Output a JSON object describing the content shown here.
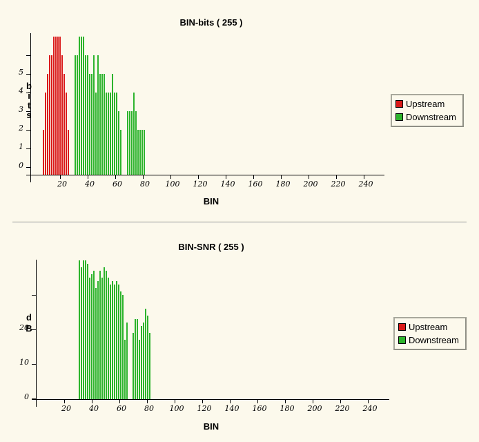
{
  "page": {
    "background": "#FCF9EC"
  },
  "legend": {
    "items": [
      {
        "label": "Upstream",
        "color": "#DA1A1A"
      },
      {
        "label": "Downstream",
        "color": "#2DB42D"
      }
    ]
  },
  "chart_data": [
    {
      "type": "bar",
      "title": "BIN-bits ( 255 )",
      "xlabel": "BIN",
      "ylabel": "bits",
      "xlim": [
        0,
        255
      ],
      "ylim": [
        0,
        7
      ],
      "grid": false,
      "legend_position": "right",
      "x_ticks": [
        20,
        40,
        60,
        80,
        100,
        120,
        140,
        160,
        180,
        200,
        220,
        240
      ],
      "y_ticks": [
        {
          "v": 0,
          "label": "0"
        },
        {
          "v": 1,
          "label": "1"
        },
        {
          "v": 2,
          "label": "2"
        },
        {
          "v": 3,
          "label": "3"
        },
        {
          "v": 4,
          "label": "4"
        },
        {
          "v": 5,
          "label": "5"
        },
        {
          "v": 6,
          "label": ""
        }
      ],
      "series": [
        {
          "name": "Upstream",
          "color": "#DA1A1A",
          "bins": [
            7.7,
            9.2,
            10.7,
            12.2,
            13.7,
            15.2,
            16.7,
            18.2,
            19.7,
            21.2,
            22.7,
            24.2,
            25.7
          ],
          "values": [
            2,
            4,
            5,
            6,
            6,
            7,
            7,
            7,
            7,
            6,
            5,
            4,
            2
          ]
        },
        {
          "name": "Downstream",
          "color": "#2DB42D",
          "bins": [
            30.7,
            32.2,
            33.7,
            35.2,
            36.7,
            38.2,
            39.7,
            41.2,
            42.7,
            44.2,
            45.7,
            47.2,
            48.7,
            50.2,
            51.7,
            53.2,
            54.7,
            56.2,
            57.7,
            59.2,
            60.7,
            62.2,
            63.7,
            68.7,
            70.2,
            71.7,
            73.2,
            74.7,
            76.2,
            77.7,
            79.2,
            80.7
          ],
          "values": [
            6,
            6,
            7,
            7,
            7,
            6,
            6,
            5,
            5,
            6,
            4,
            6,
            5,
            5,
            5,
            4,
            4,
            4,
            5,
            4,
            4,
            3,
            2,
            3,
            3,
            3,
            4,
            3,
            2,
            2,
            2,
            2
          ]
        }
      ]
    },
    {
      "type": "bar",
      "title": "BIN-SNR ( 255 )",
      "xlabel": "BIN",
      "ylabel": "dB",
      "xlim": [
        0,
        255
      ],
      "ylim": [
        0,
        40
      ],
      "grid": false,
      "legend_position": "right",
      "x_ticks": [
        20,
        40,
        60,
        80,
        100,
        120,
        140,
        160,
        180,
        200,
        220,
        240
      ],
      "y_ticks": [
        {
          "v": 0,
          "label": "0"
        },
        {
          "v": 10,
          "label": "10"
        },
        {
          "v": 20,
          "label": "20"
        },
        {
          "v": 30,
          "label": ""
        }
      ],
      "series": [
        {
          "name": "Upstream",
          "color": "#DA1A1A",
          "bins": [],
          "values": []
        },
        {
          "name": "Downstream",
          "color": "#2DB42D",
          "bins": [
            30.4,
            31.9,
            33.4,
            34.9,
            36.4,
            37.9,
            39.4,
            40.9,
            42.4,
            43.9,
            45.4,
            46.9,
            48.4,
            49.9,
            51.4,
            52.9,
            54.4,
            55.9,
            57.4,
            58.9,
            60.4,
            61.9,
            63.4,
            64.9,
            69.4,
            70.9,
            72.4,
            73.9,
            75.4,
            76.9,
            78.4,
            79.9,
            81.4
          ],
          "values": [
            40,
            38,
            40,
            40,
            39,
            35,
            36,
            37,
            32,
            34,
            37,
            35,
            38,
            37,
            35,
            33,
            34,
            33,
            34,
            33,
            31,
            30,
            17,
            22,
            19,
            23,
            23,
            17,
            21,
            22,
            26,
            24,
            19
          ]
        }
      ]
    }
  ]
}
